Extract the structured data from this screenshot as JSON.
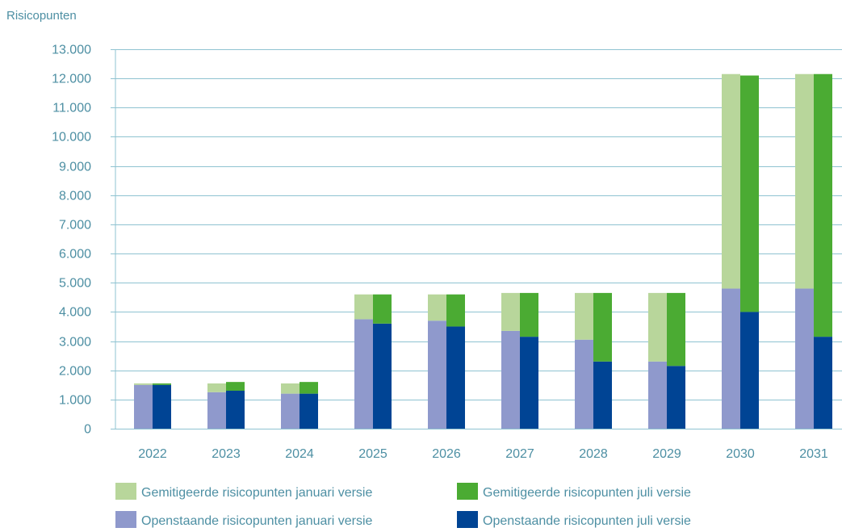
{
  "chart_data": {
    "type": "bar",
    "subtype": "stacked-grouped",
    "ylabel": "Risicopunten",
    "ylim": [
      0,
      13000
    ],
    "yticks": [
      0,
      1000,
      2000,
      3000,
      4000,
      5000,
      6000,
      7000,
      8000,
      9000,
      10000,
      11000,
      12000,
      13000
    ],
    "ytick_labels": [
      "0",
      "1.000",
      "2.000",
      "3.000",
      "4.000",
      "5.000",
      "6.000",
      "7.000",
      "8.000",
      "9.000",
      "10.000",
      "11.000",
      "12.000",
      "13.000"
    ],
    "grid": true,
    "legend_position": "bottom",
    "categories": [
      "2022",
      "2023",
      "2024",
      "2025",
      "2026",
      "2027",
      "2028",
      "2029",
      "2030",
      "2031"
    ],
    "groups": [
      {
        "name": "januari versie",
        "stack": [
          {
            "name": "Openstaande risicopunten januari versie",
            "color": "#8f99cc",
            "values": [
              1500,
              1250,
              1200,
              3750,
              3700,
              3350,
              3050,
              2300,
              4800,
              4800
            ]
          },
          {
            "name": "Gemitigeerde risicopunten januari versie",
            "color": "#b8d69b",
            "values": [
              50,
              300,
              350,
              850,
              900,
              1300,
              1600,
              2350,
              7350,
              7350
            ]
          }
        ]
      },
      {
        "name": "juli versie",
        "stack": [
          {
            "name": "Openstaande risicopunten juli versie",
            "color": "#004494",
            "values": [
              1500,
              1300,
              1200,
              3600,
              3500,
              3150,
              2300,
              2150,
              4000,
              3150
            ]
          },
          {
            "name": "Gemitigeerde risicopunten juli versie",
            "color": "#4bab33",
            "values": [
              50,
              300,
              400,
              1000,
              1100,
              1500,
              2350,
              2500,
              8100,
              9000
            ]
          }
        ]
      }
    ],
    "legend": [
      {
        "label": "Gemitigeerde risicopunten januari versie",
        "color": "#b8d69b"
      },
      {
        "label": "Gemitigeerde risicopunten juli versie",
        "color": "#4bab33"
      },
      {
        "label": "Openstaande risicopunten januari versie",
        "color": "#8f99cc"
      },
      {
        "label": "Openstaande risicopunten juli versie",
        "color": "#004494"
      }
    ],
    "colors": {
      "gridline": "#8fc3d1",
      "axis": "#8fc3d1",
      "text": "#4d8fa3"
    }
  }
}
